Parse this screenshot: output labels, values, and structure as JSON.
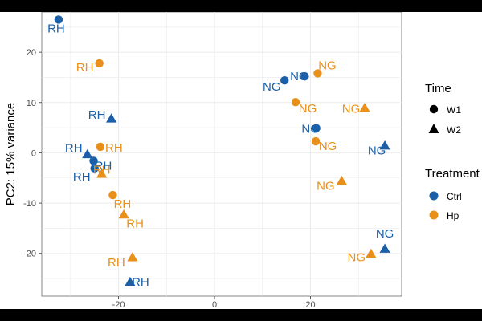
{
  "chart_data": {
    "type": "scatter",
    "xlabel": "",
    "ylabel": "PC2: 15% variance",
    "xlim": [
      -36,
      39
    ],
    "ylim": [
      -28.5,
      28
    ],
    "x_ticks": [
      -20,
      0,
      20
    ],
    "y_ticks": [
      -20,
      -10,
      0,
      10,
      20
    ],
    "grid": true,
    "legend_placement": "right",
    "colors": {
      "Ctrl": "#1a5fa8",
      "Hp": "#e8901a"
    },
    "legends": [
      {
        "title": "Time",
        "entries": [
          {
            "label": "W1",
            "shape": "circle"
          },
          {
            "label": "W2",
            "shape": "triangle"
          }
        ]
      },
      {
        "title": "Treatment",
        "entries": [
          {
            "label": "Ctrl",
            "color": "#1a5fa8"
          },
          {
            "label": "Hp",
            "color": "#e8901a"
          }
        ]
      }
    ],
    "points": [
      {
        "x": -32.5,
        "y": 26.5,
        "time": "W1",
        "treatment": "Ctrl",
        "label": "RH"
      },
      {
        "x": -24,
        "y": 17.8,
        "time": "W1",
        "treatment": "Hp",
        "label": "RH"
      },
      {
        "x": -21.5,
        "y": 6.8,
        "time": "W2",
        "treatment": "Ctrl",
        "label": "RH"
      },
      {
        "x": -23.8,
        "y": 1.2,
        "time": "W1",
        "treatment": "Hp",
        "label": "RH"
      },
      {
        "x": -26.5,
        "y": -0.3,
        "time": "W2",
        "treatment": "Ctrl",
        "label": "RH"
      },
      {
        "x": -25.2,
        "y": -1.6,
        "time": "W1",
        "treatment": "Ctrl",
        "label": "RH"
      },
      {
        "x": -25,
        "y": -3.1,
        "time": "W1",
        "treatment": "Ctrl",
        "label": "RH"
      },
      {
        "x": -23.5,
        "y": -4.2,
        "time": "W2",
        "treatment": "Hp",
        "label": "RH"
      },
      {
        "x": -21.2,
        "y": -8.4,
        "time": "W1",
        "treatment": "Hp",
        "label": "RH"
      },
      {
        "x": -18.9,
        "y": -12.3,
        "time": "W2",
        "treatment": "Hp",
        "label": "RH"
      },
      {
        "x": -17.1,
        "y": -20.8,
        "time": "W2",
        "treatment": "Hp",
        "label": "RH"
      },
      {
        "x": -17.6,
        "y": -25.7,
        "time": "W2",
        "treatment": "Ctrl",
        "label": "RH"
      },
      {
        "x": 14.6,
        "y": 14.4,
        "time": "W1",
        "treatment": "Ctrl",
        "label": "NG"
      },
      {
        "x": 18.8,
        "y": 15.2,
        "time": "W1",
        "treatment": "Ctrl",
        "label": "NG"
      },
      {
        "x": 21.5,
        "y": 15.8,
        "time": "W1",
        "treatment": "Hp",
        "label": "NG"
      },
      {
        "x": 16.9,
        "y": 10.1,
        "time": "W1",
        "treatment": "Hp",
        "label": "NG"
      },
      {
        "x": 21.2,
        "y": 4.9,
        "time": "W1",
        "treatment": "Ctrl",
        "label": "NG"
      },
      {
        "x": 21.1,
        "y": 2.3,
        "time": "W1",
        "treatment": "Hp",
        "label": "NG"
      },
      {
        "x": 31.3,
        "y": 8.9,
        "time": "W2",
        "treatment": "Hp",
        "label": "NG"
      },
      {
        "x": 35.5,
        "y": 1.4,
        "time": "W2",
        "treatment": "Ctrl",
        "label": "NG"
      },
      {
        "x": 26.5,
        "y": -5.6,
        "time": "W2",
        "treatment": "Hp",
        "label": "NG"
      },
      {
        "x": 35.5,
        "y": -19.1,
        "time": "W2",
        "treatment": "Ctrl",
        "label": "NG"
      },
      {
        "x": 32.6,
        "y": -20.1,
        "time": "W2",
        "treatment": "Hp",
        "label": "NG"
      }
    ]
  }
}
